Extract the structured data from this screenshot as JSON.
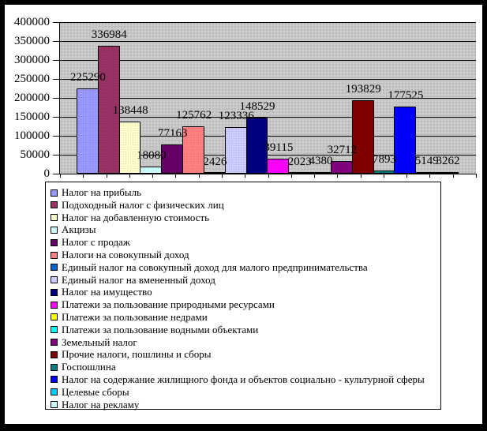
{
  "chart_data": {
    "type": "bar",
    "title": "",
    "xlabel": "",
    "ylabel": "",
    "ylim": [
      0,
      400000
    ],
    "y_tick_step": 50000,
    "y_tick_labels": [
      "0",
      "50000",
      "100000",
      "150000",
      "200000",
      "250000",
      "300000",
      "350000",
      "400000"
    ],
    "grid": "horizontal",
    "legend_position": "bottom",
    "plot_background": "#c6c6c6",
    "categories": [
      "Налог на прибыль",
      "Подоходный налог с физических лиц",
      "Налог на добавленную стоимость",
      "Акцизы",
      "Налог с продаж",
      "Налоги на совокупный доход",
      "Единый налог на совокупный доход для малого  предпринимательства",
      "Единый налог на вмененный доход",
      "Налог на имущество",
      "Платежи за пользование природными ресурсами",
      "Платежи за пользование недрами",
      "Платежи за пользование водными объектами",
      "Земельный налог",
      "Прочие налоги, пошлины и сборы",
      "Госпошлина",
      "Налог на содержание жилищного фонда и объектов  социально - культурной сферы",
      "Целевые сборы",
      "Налог на рекламу"
    ],
    "values": [
      225290,
      336984,
      138448,
      18080,
      77163,
      125762,
      2426,
      123336,
      148529,
      39115,
      2023,
      4380,
      32712,
      193829,
      7893,
      177525,
      5149,
      3262
    ],
    "value_labels": [
      "225290",
      "336984",
      "138448",
      "18080",
      "77163",
      "125762",
      "2426",
      "123336",
      "148529",
      "39115",
      "2023",
      "4380",
      "32712",
      "193829",
      "7893",
      "177525",
      "5149",
      "3262"
    ],
    "colors": [
      "#9999FF",
      "#993366",
      "#FFFFCC",
      "#CCFFFF",
      "#660066",
      "#FF8080",
      "#0066CC",
      "#CCCCFF",
      "#000080",
      "#FF00FF",
      "#FFFF00",
      "#00FFFF",
      "#800080",
      "#800000",
      "#008080",
      "#0000FF",
      "#00CCFF",
      "#CCFFFF"
    ]
  }
}
